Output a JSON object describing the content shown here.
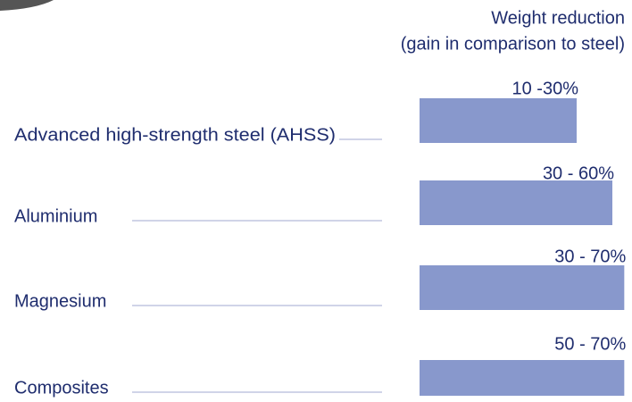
{
  "chart_data": {
    "type": "range-bar",
    "title": "Weight reduction",
    "subtitle": "(gain in comparison to steel)",
    "categories": [
      "Advanced high-strength steel (AHSS)",
      "Aluminium",
      "Magnesium",
      "Composites"
    ],
    "low": [
      10,
      30,
      30,
      50
    ],
    "high": [
      30,
      60,
      70,
      70
    ],
    "value_labels": [
      "10 -30%",
      "30 - 60%",
      "30 - 70%",
      "50 - 70%"
    ],
    "color": "#8898cc"
  }
}
